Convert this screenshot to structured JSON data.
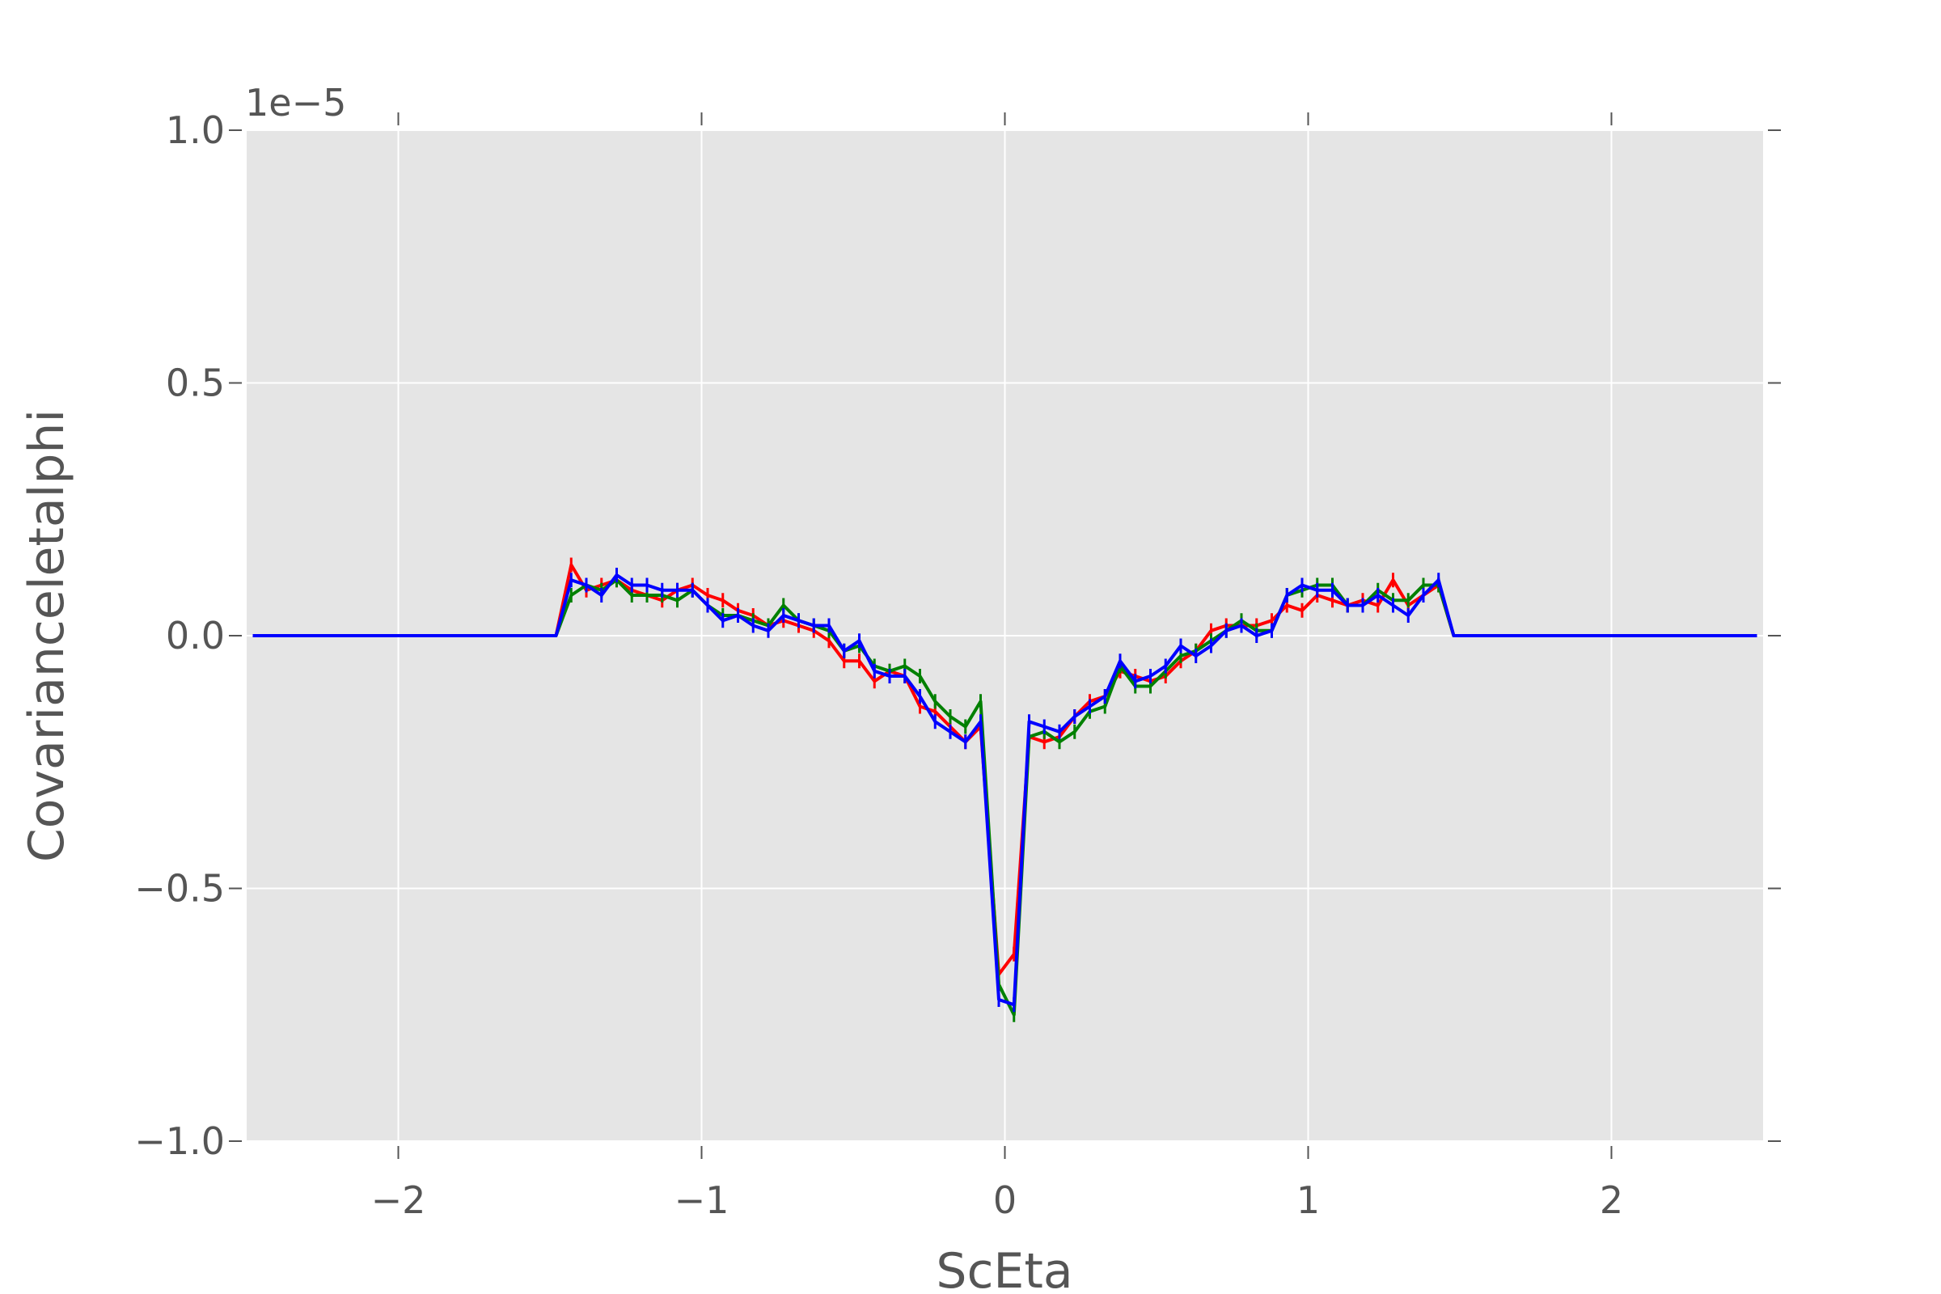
{
  "chart_data": {
    "type": "line",
    "title": "",
    "xlabel": "ScEta",
    "ylabel": "Covarianceletalphi",
    "y_offset_label": "1e−5",
    "xlim": [
      -2.5,
      2.5
    ],
    "ylim": [
      -1.0,
      1.0
    ],
    "xticks": [
      -2,
      -1,
      0,
      1,
      2
    ],
    "xtick_labels": [
      "−2",
      "−1",
      "0",
      "1",
      "2"
    ],
    "yticks": [
      -1.0,
      -0.5,
      0.0,
      0.5,
      1.0
    ],
    "ytick_labels": [
      "−1.0",
      "−0.5",
      "0.0",
      "0.5",
      "1.0"
    ],
    "grid": true,
    "background": "#e5e5e5",
    "series": [
      {
        "color": "#ff0000",
        "points": [
          [
            -2.48,
            0
          ],
          [
            -1.48,
            0
          ],
          [
            -1.43,
            0.14
          ],
          [
            -1.38,
            0.09
          ],
          [
            -1.33,
            0.1
          ],
          [
            -1.28,
            0.11
          ],
          [
            -1.23,
            0.09
          ],
          [
            -1.18,
            0.08
          ],
          [
            -1.13,
            0.07
          ],
          [
            -1.08,
            0.09
          ],
          [
            -1.03,
            0.1
          ],
          [
            -0.98,
            0.08
          ],
          [
            -0.93,
            0.07
          ],
          [
            -0.88,
            0.05
          ],
          [
            -0.83,
            0.04
          ],
          [
            -0.78,
            0.02
          ],
          [
            -0.73,
            0.03
          ],
          [
            -0.68,
            0.02
          ],
          [
            -0.63,
            0.01
          ],
          [
            -0.58,
            -0.01
          ],
          [
            -0.53,
            -0.05
          ],
          [
            -0.48,
            -0.05
          ],
          [
            -0.43,
            -0.09
          ],
          [
            -0.38,
            -0.07
          ],
          [
            -0.33,
            -0.08
          ],
          [
            -0.28,
            -0.14
          ],
          [
            -0.23,
            -0.15
          ],
          [
            -0.18,
            -0.18
          ],
          [
            -0.13,
            -0.21
          ],
          [
            -0.08,
            -0.18
          ],
          [
            -0.02,
            -0.67
          ],
          [
            0.03,
            -0.63
          ],
          [
            0.08,
            -0.2
          ],
          [
            0.13,
            -0.21
          ],
          [
            0.18,
            -0.2
          ],
          [
            0.23,
            -0.16
          ],
          [
            0.28,
            -0.13
          ],
          [
            0.33,
            -0.12
          ],
          [
            0.38,
            -0.07
          ],
          [
            0.43,
            -0.08
          ],
          [
            0.48,
            -0.09
          ],
          [
            0.53,
            -0.08
          ],
          [
            0.58,
            -0.05
          ],
          [
            0.63,
            -0.03
          ],
          [
            0.68,
            0.01
          ],
          [
            0.73,
            0.02
          ],
          [
            0.78,
            0.02
          ],
          [
            0.83,
            0.02
          ],
          [
            0.88,
            0.03
          ],
          [
            0.93,
            0.06
          ],
          [
            0.98,
            0.05
          ],
          [
            1.03,
            0.08
          ],
          [
            1.08,
            0.07
          ],
          [
            1.13,
            0.06
          ],
          [
            1.18,
            0.07
          ],
          [
            1.23,
            0.06
          ],
          [
            1.28,
            0.11
          ],
          [
            1.33,
            0.06
          ],
          [
            1.38,
            0.08
          ],
          [
            1.43,
            0.1
          ],
          [
            1.48,
            0
          ],
          [
            2.48,
            0
          ]
        ]
      },
      {
        "color": "#008000",
        "points": [
          [
            -2.48,
            0
          ],
          [
            -1.48,
            0
          ],
          [
            -1.43,
            0.08
          ],
          [
            -1.38,
            0.1
          ],
          [
            -1.33,
            0.09
          ],
          [
            -1.28,
            0.11
          ],
          [
            -1.23,
            0.08
          ],
          [
            -1.18,
            0.08
          ],
          [
            -1.13,
            0.08
          ],
          [
            -1.08,
            0.07
          ],
          [
            -1.03,
            0.09
          ],
          [
            -0.98,
            0.06
          ],
          [
            -0.93,
            0.04
          ],
          [
            -0.88,
            0.04
          ],
          [
            -0.83,
            0.03
          ],
          [
            -0.78,
            0.02
          ],
          [
            -0.73,
            0.06
          ],
          [
            -0.68,
            0.03
          ],
          [
            -0.63,
            0.02
          ],
          [
            -0.58,
            0.01
          ],
          [
            -0.53,
            -0.03
          ],
          [
            -0.48,
            -0.02
          ],
          [
            -0.43,
            -0.06
          ],
          [
            -0.38,
            -0.07
          ],
          [
            -0.33,
            -0.06
          ],
          [
            -0.28,
            -0.08
          ],
          [
            -0.23,
            -0.13
          ],
          [
            -0.18,
            -0.16
          ],
          [
            -0.13,
            -0.18
          ],
          [
            -0.08,
            -0.13
          ],
          [
            -0.02,
            -0.69
          ],
          [
            0.03,
            -0.75
          ],
          [
            0.08,
            -0.2
          ],
          [
            0.13,
            -0.19
          ],
          [
            0.18,
            -0.21
          ],
          [
            0.23,
            -0.19
          ],
          [
            0.28,
            -0.15
          ],
          [
            0.33,
            -0.14
          ],
          [
            0.38,
            -0.06
          ],
          [
            0.43,
            -0.1
          ],
          [
            0.48,
            -0.1
          ],
          [
            0.53,
            -0.07
          ],
          [
            0.58,
            -0.04
          ],
          [
            0.63,
            -0.03
          ],
          [
            0.68,
            -0.01
          ],
          [
            0.73,
            0.01
          ],
          [
            0.78,
            0.03
          ],
          [
            0.83,
            0.01
          ],
          [
            0.88,
            0.01
          ],
          [
            0.93,
            0.08
          ],
          [
            0.98,
            0.09
          ],
          [
            1.03,
            0.1
          ],
          [
            1.08,
            0.1
          ],
          [
            1.13,
            0.06
          ],
          [
            1.18,
            0.06
          ],
          [
            1.23,
            0.09
          ],
          [
            1.28,
            0.07
          ],
          [
            1.33,
            0.07
          ],
          [
            1.38,
            0.1
          ],
          [
            1.43,
            0.1
          ],
          [
            1.48,
            0
          ],
          [
            2.48,
            0
          ]
        ]
      },
      {
        "color": "#0000ff",
        "points": [
          [
            -2.48,
            0
          ],
          [
            -1.48,
            0
          ],
          [
            -1.43,
            0.11
          ],
          [
            -1.38,
            0.1
          ],
          [
            -1.33,
            0.08
          ],
          [
            -1.28,
            0.12
          ],
          [
            -1.23,
            0.1
          ],
          [
            -1.18,
            0.1
          ],
          [
            -1.13,
            0.09
          ],
          [
            -1.08,
            0.09
          ],
          [
            -1.03,
            0.09
          ],
          [
            -0.98,
            0.06
          ],
          [
            -0.93,
            0.03
          ],
          [
            -0.88,
            0.04
          ],
          [
            -0.83,
            0.02
          ],
          [
            -0.78,
            0.01
          ],
          [
            -0.73,
            0.04
          ],
          [
            -0.68,
            0.03
          ],
          [
            -0.63,
            0.02
          ],
          [
            -0.58,
            0.02
          ],
          [
            -0.53,
            -0.03
          ],
          [
            -0.48,
            -0.01
          ],
          [
            -0.43,
            -0.07
          ],
          [
            -0.38,
            -0.08
          ],
          [
            -0.33,
            -0.08
          ],
          [
            -0.28,
            -0.12
          ],
          [
            -0.23,
            -0.17
          ],
          [
            -0.18,
            -0.19
          ],
          [
            -0.13,
            -0.21
          ],
          [
            -0.08,
            -0.17
          ],
          [
            -0.02,
            -0.72
          ],
          [
            0.03,
            -0.73
          ],
          [
            0.08,
            -0.17
          ],
          [
            0.13,
            -0.18
          ],
          [
            0.18,
            -0.19
          ],
          [
            0.23,
            -0.16
          ],
          [
            0.28,
            -0.14
          ],
          [
            0.33,
            -0.12
          ],
          [
            0.38,
            -0.05
          ],
          [
            0.43,
            -0.09
          ],
          [
            0.48,
            -0.08
          ],
          [
            0.53,
            -0.06
          ],
          [
            0.58,
            -0.02
          ],
          [
            0.63,
            -0.04
          ],
          [
            0.68,
            -0.02
          ],
          [
            0.73,
            0.01
          ],
          [
            0.78,
            0.02
          ],
          [
            0.83,
            0
          ],
          [
            0.88,
            0.01
          ],
          [
            0.93,
            0.08
          ],
          [
            0.98,
            0.1
          ],
          [
            1.03,
            0.09
          ],
          [
            1.08,
            0.09
          ],
          [
            1.13,
            0.06
          ],
          [
            1.18,
            0.06
          ],
          [
            1.23,
            0.08
          ],
          [
            1.28,
            0.06
          ],
          [
            1.33,
            0.04
          ],
          [
            1.38,
            0.08
          ],
          [
            1.43,
            0.11
          ],
          [
            1.48,
            0
          ],
          [
            2.48,
            0
          ]
        ]
      }
    ]
  }
}
